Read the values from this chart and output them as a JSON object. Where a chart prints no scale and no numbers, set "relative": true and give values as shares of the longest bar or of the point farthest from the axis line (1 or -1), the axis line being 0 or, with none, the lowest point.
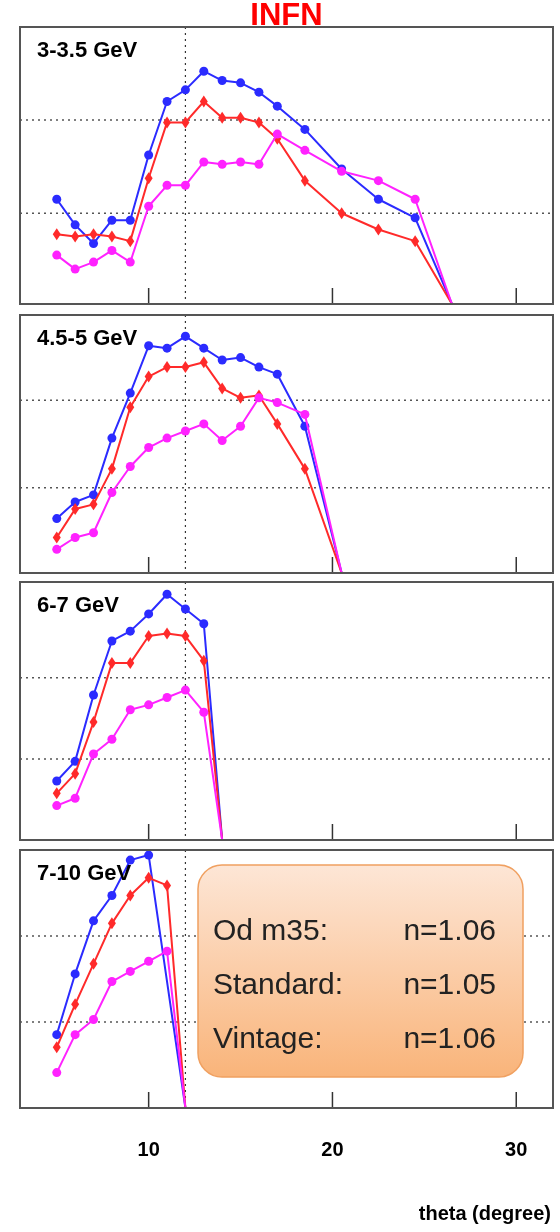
{
  "chart_data": [
    {
      "type": "line",
      "title": "INFN",
      "annotations": [
        "3-3.5 GeV"
      ],
      "relative": true,
      "tick_labels": false,
      "xlim": [
        3,
        32
      ],
      "xticks": [
        10,
        20,
        30
      ],
      "ref_lines": [
        {
          "axis": "x",
          "value": 12,
          "line_style": "dotted"
        },
        {
          "axis": "y",
          "value": 0.79,
          "line_style": "dotted"
        },
        {
          "axis": "y",
          "value": 0.39,
          "line_style": "dotted"
        }
      ],
      "series": [
        {
          "color": "#2b2bff",
          "marker": "circle",
          "x": [
            5,
            6,
            7,
            8,
            9,
            10,
            11,
            12,
            13,
            14,
            15,
            16,
            17,
            18.5,
            20.5,
            22.5,
            24.5,
            26.5
          ],
          "values": [
            0.45,
            0.34,
            0.26,
            0.36,
            0.36,
            0.64,
            0.87,
            0.92,
            1,
            0.96,
            0.95,
            0.91,
            0.85,
            0.75,
            0.58,
            0.45,
            0.37,
            0
          ]
        },
        {
          "color": "#ff2a2a",
          "marker": "diamond",
          "x": [
            5,
            6,
            7,
            8,
            9,
            10,
            11,
            12,
            13,
            14,
            15,
            16,
            17,
            18.5,
            20.5,
            22.5,
            24.5,
            26.5
          ],
          "values": [
            0.3,
            0.29,
            0.3,
            0.29,
            0.27,
            0.54,
            0.78,
            0.78,
            0.87,
            0.8,
            0.8,
            0.78,
            0.71,
            0.53,
            0.39,
            0.32,
            0.27,
            0
          ]
        },
        {
          "color": "#ff22ff",
          "marker": "circle",
          "x": [
            5,
            6,
            7,
            8,
            9,
            10,
            11,
            12,
            13,
            14,
            15,
            16,
            17,
            18.5,
            20.5,
            22.5,
            24.5,
            26.5
          ],
          "values": [
            0.21,
            0.15,
            0.18,
            0.23,
            0.18,
            0.42,
            0.51,
            0.51,
            0.61,
            0.6,
            0.61,
            0.6,
            0.73,
            0.66,
            0.57,
            0.53,
            0.45,
            0
          ]
        }
      ]
    },
    {
      "type": "line",
      "annotations": [
        "4.5-5 GeV"
      ],
      "relative": true,
      "tick_labels": false,
      "xlim": [
        3,
        32
      ],
      "xticks": [
        10,
        20,
        30
      ],
      "ref_lines": [
        {
          "axis": "x",
          "value": 12,
          "line_style": "dotted"
        },
        {
          "axis": "y",
          "value": 0.73,
          "line_style": "dotted"
        },
        {
          "axis": "y",
          "value": 0.36,
          "line_style": "dotted"
        }
      ],
      "series": [
        {
          "color": "#2b2bff",
          "marker": "circle",
          "x": [
            5,
            6,
            7,
            8,
            9,
            10,
            11,
            12,
            13,
            14,
            15,
            16,
            17,
            18.5,
            20.5
          ],
          "values": [
            0.23,
            0.3,
            0.33,
            0.57,
            0.76,
            0.96,
            0.95,
            1,
            0.95,
            0.9,
            0.91,
            0.87,
            0.84,
            0.62,
            0
          ]
        },
        {
          "color": "#ff2a2a",
          "marker": "diamond",
          "x": [
            5,
            6,
            7,
            8,
            9,
            10,
            11,
            12,
            13,
            14,
            15,
            16,
            17,
            18.5,
            20.5
          ],
          "values": [
            0.15,
            0.27,
            0.29,
            0.44,
            0.7,
            0.83,
            0.87,
            0.87,
            0.89,
            0.78,
            0.74,
            0.75,
            0.63,
            0.44,
            0
          ]
        },
        {
          "color": "#ff22ff",
          "marker": "circle",
          "x": [
            5,
            6,
            7,
            8,
            9,
            10,
            11,
            12,
            13,
            14,
            15,
            16,
            17,
            18.5,
            20.5
          ],
          "values": [
            0.1,
            0.15,
            0.17,
            0.34,
            0.45,
            0.53,
            0.57,
            0.6,
            0.63,
            0.56,
            0.62,
            0.74,
            0.72,
            0.67,
            0
          ]
        }
      ]
    },
    {
      "type": "line",
      "annotations": [
        "6-7 GeV"
      ],
      "relative": true,
      "tick_labels": false,
      "xlim": [
        3,
        32
      ],
      "xticks": [
        10,
        20,
        30
      ],
      "ref_lines": [
        {
          "axis": "x",
          "value": 12,
          "line_style": "dotted"
        },
        {
          "axis": "y",
          "value": 0.66,
          "line_style": "dotted"
        },
        {
          "axis": "y",
          "value": 0.33,
          "line_style": "dotted"
        }
      ],
      "series": [
        {
          "color": "#2b2bff",
          "marker": "circle",
          "x": [
            5,
            6,
            7,
            8,
            9,
            10,
            11,
            12,
            13,
            14
          ],
          "values": [
            0.24,
            0.32,
            0.59,
            0.81,
            0.85,
            0.92,
            1,
            0.94,
            0.88,
            0
          ]
        },
        {
          "color": "#ff2a2a",
          "marker": "diamond",
          "x": [
            5,
            6,
            7,
            8,
            9,
            10,
            11,
            12,
            13,
            14
          ],
          "values": [
            0.19,
            0.27,
            0.48,
            0.72,
            0.72,
            0.83,
            0.84,
            0.83,
            0.73,
            0
          ]
        },
        {
          "color": "#ff22ff",
          "marker": "circle",
          "x": [
            5,
            6,
            7,
            8,
            9,
            10,
            11,
            12,
            13,
            14
          ],
          "values": [
            0.14,
            0.17,
            0.35,
            0.41,
            0.53,
            0.55,
            0.58,
            0.61,
            0.52,
            0
          ]
        }
      ]
    },
    {
      "type": "line",
      "annotations": [
        "7-10 GeV",
        "Od m35:    n=1.06",
        "Standard:   n=1.05",
        "Vintage:    n=1.06"
      ],
      "relative": true,
      "tick_labels": "x",
      "xlabel": "theta  (degree)",
      "xlim": [
        3,
        32
      ],
      "xticks": [
        10,
        20,
        30
      ],
      "ref_lines": [
        {
          "axis": "x",
          "value": 12,
          "line_style": "dotted"
        },
        {
          "axis": "y",
          "value": 0.68,
          "line_style": "dotted"
        },
        {
          "axis": "y",
          "value": 0.34,
          "line_style": "dotted"
        }
      ],
      "series": [
        {
          "color": "#2b2bff",
          "marker": "circle",
          "x": [
            5,
            6,
            7,
            8,
            9,
            10,
            12
          ],
          "values": [
            0.29,
            0.53,
            0.74,
            0.84,
            0.98,
            1,
            0
          ]
        },
        {
          "color": "#ff2a2a",
          "marker": "diamond",
          "x": [
            5,
            6,
            7,
            8,
            9,
            10,
            11,
            12
          ],
          "values": [
            0.24,
            0.41,
            0.57,
            0.73,
            0.84,
            0.91,
            0.88,
            0
          ]
        },
        {
          "color": "#ff22ff",
          "marker": "circle",
          "x": [
            5,
            6,
            7,
            8,
            9,
            10,
            11,
            12
          ],
          "values": [
            0.14,
            0.29,
            0.35,
            0.5,
            0.54,
            0.58,
            0.62,
            0
          ]
        }
      ]
    }
  ]
}
